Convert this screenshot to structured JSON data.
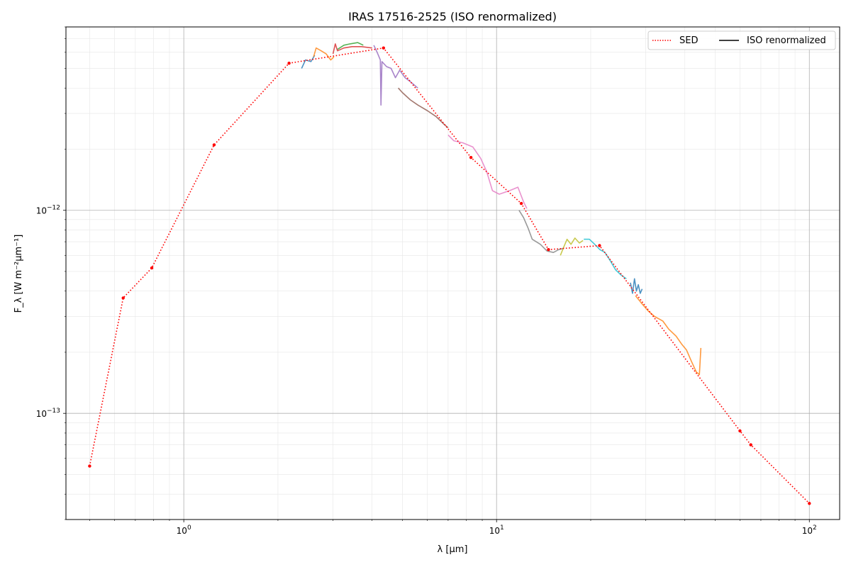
{
  "chart_data": {
    "type": "line",
    "title": "IRAS 17516-2525 (ISO renormalized)",
    "xlabel": "λ [μm]",
    "ylabel": "F_λ [W m⁻²μm⁻¹]",
    "xscale": "log",
    "yscale": "log",
    "xlim": [
      0.42,
      125
    ],
    "ylim": [
      3e-14,
      8e-12
    ],
    "xticks": [
      {
        "value": 1,
        "base": "10",
        "exp": "0"
      },
      {
        "value": 10,
        "base": "10",
        "exp": "1"
      },
      {
        "value": 100,
        "base": "10",
        "exp": "2"
      }
    ],
    "yticks": [
      {
        "value": 1e-13,
        "base": "10",
        "exp": "−13"
      },
      {
        "value": 1e-12,
        "base": "10",
        "exp": "−12"
      }
    ],
    "grid": true,
    "legend": {
      "placement": "top-right",
      "entries": [
        {
          "label": "SED",
          "style": "dotted",
          "color": "#ff0000"
        },
        {
          "label": "ISO renormalized",
          "style": "solid",
          "color": "#000000"
        }
      ]
    },
    "sed": {
      "name": "SED",
      "color": "#ff0000",
      "points": [
        [
          0.5,
          5.5e-14
        ],
        [
          0.64,
          3.7e-13
        ],
        [
          0.79,
          5.2e-13
        ],
        [
          1.25,
          2.1e-12
        ],
        [
          2.17,
          5.3e-12
        ],
        [
          4.35,
          6.3e-12
        ],
        [
          8.28,
          1.82e-12
        ],
        [
          12.0,
          1.08e-12
        ],
        [
          14.65,
          6.4e-13
        ],
        [
          21.34,
          6.7e-13
        ],
        [
          60.0,
          8.2e-14
        ],
        [
          65.0,
          7e-14
        ],
        [
          100.0,
          3.6e-14
        ]
      ]
    },
    "iso_segments": [
      {
        "color": "#1f77b4",
        "points": [
          [
            2.38,
            5e-12
          ],
          [
            2.45,
            5.5e-12
          ],
          [
            2.55,
            5.4e-12
          ],
          [
            2.62,
            5.8e-12
          ]
        ]
      },
      {
        "color": "#ff7f0e",
        "points": [
          [
            2.6,
            5.7e-12
          ],
          [
            2.65,
            6.3e-12
          ],
          [
            2.75,
            6.1e-12
          ],
          [
            2.85,
            5.9e-12
          ],
          [
            2.95,
            5.5e-12
          ],
          [
            3.02,
            5.7e-12
          ]
        ]
      },
      {
        "color": "#2ca02c",
        "points": [
          [
            3.1,
            6.2e-12
          ],
          [
            3.25,
            6.5e-12
          ],
          [
            3.4,
            6.6e-12
          ],
          [
            3.6,
            6.7e-12
          ],
          [
            3.75,
            6.5e-12
          ]
        ]
      },
      {
        "color": "#d62728",
        "points": [
          [
            3.0,
            5.9e-12
          ],
          [
            3.05,
            6.6e-12
          ],
          [
            3.1,
            6.1e-12
          ],
          [
            3.25,
            6.3e-12
          ],
          [
            3.45,
            6.4e-12
          ],
          [
            3.7,
            6.4e-12
          ],
          [
            4.0,
            6.3e-12
          ]
        ]
      },
      {
        "color": "#9467bd",
        "points": [
          [
            4.05,
            6.5e-12
          ],
          [
            4.15,
            6e-12
          ],
          [
            4.25,
            5.5e-12
          ],
          [
            4.27,
            3.3e-12
          ],
          [
            4.3,
            5.4e-12
          ],
          [
            4.45,
            5.1e-12
          ],
          [
            4.6,
            5e-12
          ],
          [
            4.75,
            4.5e-12
          ],
          [
            4.9,
            4.9e-12
          ],
          [
            5.1,
            4.5e-12
          ],
          [
            5.3,
            4.3e-12
          ],
          [
            5.6,
            4e-12
          ]
        ]
      },
      {
        "color": "#8c564b",
        "points": [
          [
            4.85,
            4e-12
          ],
          [
            5.0,
            3.8e-12
          ],
          [
            5.3,
            3.5e-12
          ],
          [
            5.6,
            3.3e-12
          ],
          [
            6.0,
            3.1e-12
          ],
          [
            6.4,
            2.9e-12
          ],
          [
            6.8,
            2.65e-12
          ],
          [
            7.0,
            2.55e-12
          ]
        ]
      },
      {
        "color": "#e377c2",
        "points": [
          [
            7.0,
            2.35e-12
          ],
          [
            7.3,
            2.2e-12
          ],
          [
            7.8,
            2.15e-12
          ],
          [
            8.4,
            2.05e-12
          ],
          [
            8.9,
            1.8e-12
          ],
          [
            9.3,
            1.55e-12
          ],
          [
            9.7,
            1.25e-12
          ],
          [
            10.2,
            1.2e-12
          ],
          [
            11.0,
            1.25e-12
          ],
          [
            11.7,
            1.3e-12
          ],
          [
            12.2,
            1.1e-12
          ],
          [
            12.5,
            1.02e-12
          ]
        ]
      },
      {
        "color": "#7f7f7f",
        "points": [
          [
            11.8,
            1e-12
          ],
          [
            12.2,
            9.2e-13
          ],
          [
            12.6,
            8.2e-13
          ],
          [
            13.0,
            7.2e-13
          ],
          [
            13.8,
            6.8e-13
          ],
          [
            14.5,
            6.3e-13
          ],
          [
            15.2,
            6.2e-13
          ],
          [
            15.8,
            6.4e-13
          ],
          [
            16.4,
            6.5e-13
          ]
        ]
      },
      {
        "color": "#bcbd22",
        "points": [
          [
            16.0,
            6e-13
          ],
          [
            16.4,
            6.6e-13
          ],
          [
            16.8,
            7.2e-13
          ],
          [
            17.3,
            6.8e-13
          ],
          [
            17.8,
            7.3e-13
          ],
          [
            18.4,
            6.9e-13
          ],
          [
            18.9,
            7.1e-13
          ]
        ]
      },
      {
        "color": "#17becf",
        "points": [
          [
            19.0,
            7.2e-13
          ],
          [
            19.8,
            7.2e-13
          ],
          [
            20.6,
            6.8e-13
          ],
          [
            21.4,
            6.4e-13
          ],
          [
            22.2,
            6.2e-13
          ],
          [
            23.0,
            5.7e-13
          ],
          [
            24.0,
            5.1e-13
          ],
          [
            25.0,
            4.8e-13
          ],
          [
            26.0,
            4.6e-13
          ]
        ]
      },
      {
        "color": "#1f77b4",
        "points": [
          [
            26.8,
            4.4e-13
          ],
          [
            27.2,
            3.9e-13
          ],
          [
            27.6,
            4.6e-13
          ],
          [
            28.0,
            4e-13
          ],
          [
            28.4,
            4.3e-13
          ],
          [
            28.8,
            3.9e-13
          ],
          [
            29.2,
            4.1e-13
          ]
        ]
      },
      {
        "color": "#ff7f0e",
        "points": [
          [
            27.8,
            3.8e-13
          ],
          [
            29.0,
            3.5e-13
          ],
          [
            30.5,
            3.2e-13
          ],
          [
            32.0,
            3e-13
          ],
          [
            34.0,
            2.85e-13
          ],
          [
            35.5,
            2.6e-13
          ],
          [
            37.5,
            2.4e-13
          ],
          [
            39.0,
            2.2e-13
          ],
          [
            40.5,
            2.05e-13
          ],
          [
            42.0,
            1.8e-13
          ],
          [
            43.5,
            1.6e-13
          ],
          [
            44.5,
            1.55e-13
          ],
          [
            45.0,
            2.1e-13
          ]
        ]
      }
    ]
  }
}
